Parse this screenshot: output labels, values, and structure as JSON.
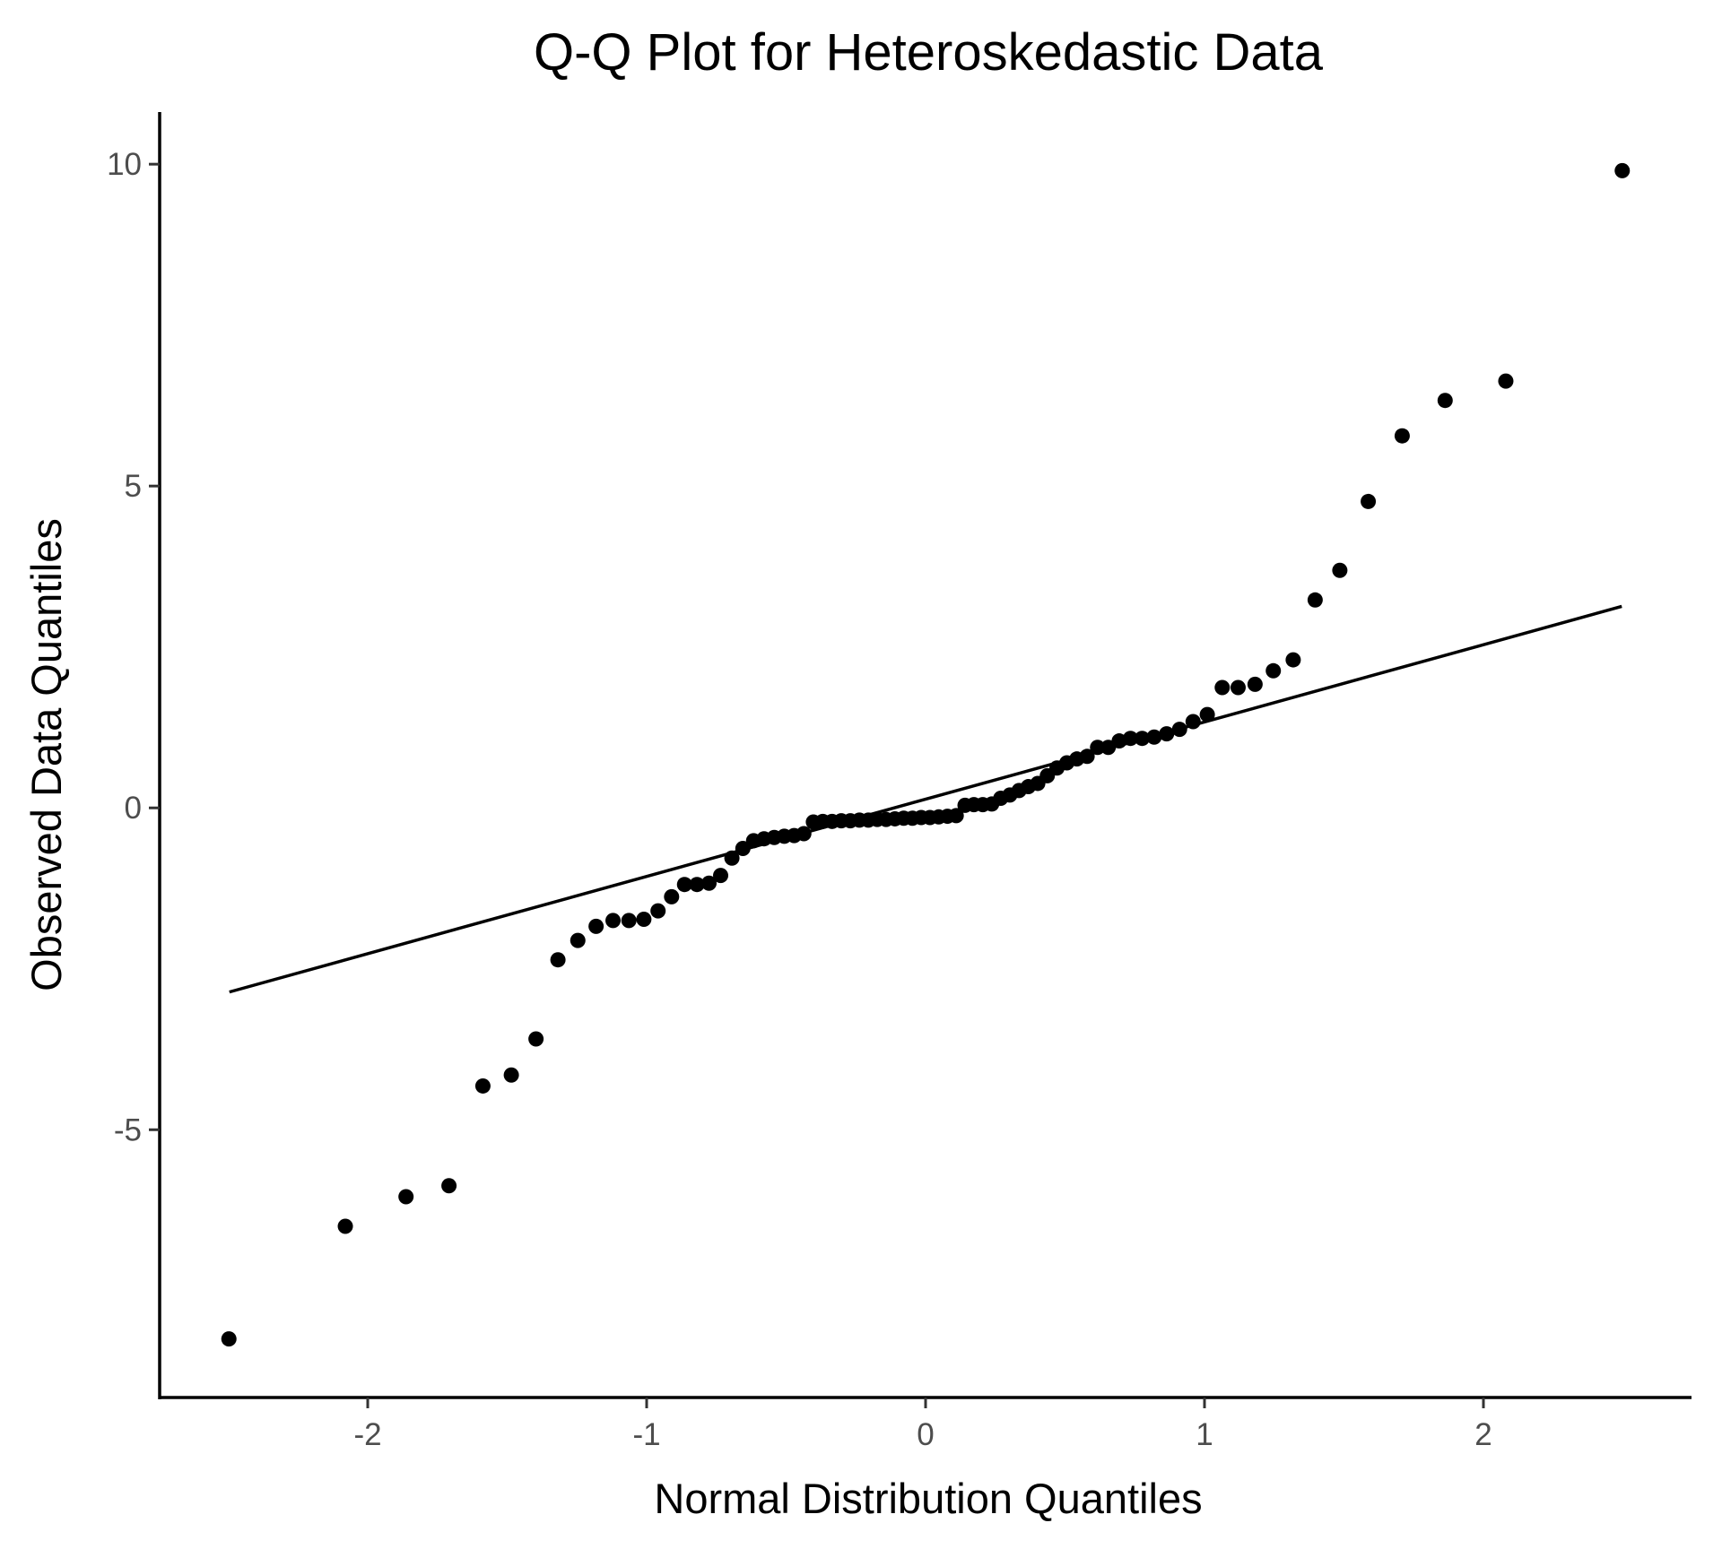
{
  "chart_data": {
    "type": "scatter",
    "title": "Q-Q Plot for Heteroskedastic Data",
    "xlabel": "Normal Distribution Quantiles",
    "ylabel": "Observed Data Quantiles",
    "xlim": [
      -2.746,
      2.746
    ],
    "ylim": [
      -9.16,
      10.81
    ],
    "xticks": [
      -2,
      -1,
      0,
      1,
      2
    ],
    "xtick_labels": [
      "-2",
      "-1",
      "0",
      "1",
      "2"
    ],
    "yticks": [
      -5,
      0,
      5,
      10
    ],
    "ytick_labels": [
      "-5",
      "0",
      "5",
      "10"
    ],
    "grid": false,
    "n": 80,
    "y": [
      -8.25,
      -6.5,
      -6.04,
      -5.87,
      -4.32,
      -4.15,
      -3.59,
      -2.36,
      -2.06,
      -1.84,
      -1.75,
      -1.75,
      -1.73,
      -1.6,
      -1.38,
      -1.19,
      -1.19,
      -1.17,
      -1.05,
      -0.78,
      -0.63,
      -0.51,
      -0.48,
      -0.46,
      -0.44,
      -0.43,
      -0.4,
      -0.22,
      -0.21,
      -0.21,
      -0.2,
      -0.2,
      -0.19,
      -0.19,
      -0.18,
      -0.18,
      -0.17,
      -0.16,
      -0.16,
      -0.15,
      -0.15,
      -0.14,
      -0.13,
      -0.12,
      0.04,
      0.05,
      0.05,
      0.06,
      0.15,
      0.2,
      0.27,
      0.33,
      0.38,
      0.5,
      0.62,
      0.7,
      0.76,
      0.8,
      0.94,
      0.94,
      1.04,
      1.08,
      1.08,
      1.1,
      1.15,
      1.22,
      1.34,
      1.45,
      1.87,
      1.87,
      1.92,
      2.13,
      2.3,
      3.23,
      3.69,
      4.76,
      5.78,
      6.33,
      6.63,
      9.9
    ],
    "reference_line": {
      "slope": 1.2,
      "intercept": 0.135,
      "x_range": [
        -2.496,
        2.496
      ]
    }
  }
}
